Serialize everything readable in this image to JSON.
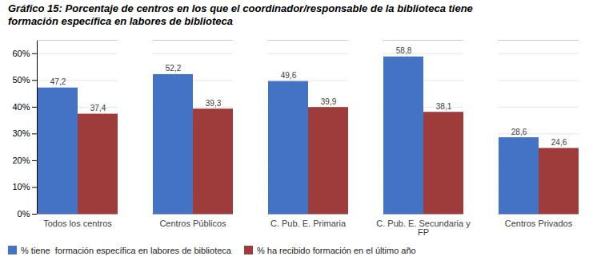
{
  "chart_data": {
    "type": "bar",
    "title": "Gráfico 15: Porcentaje de centros en los que el coordinador/responsable de la biblioteca tiene\nformación específica en labores de biblioteca",
    "categories": [
      "Todos los centros",
      "Centros Públicos",
      "C. Pub. E. Primaria",
      "C. Pub. E. Secundaria y\nFP",
      "Centros Privados"
    ],
    "series": [
      {
        "name": "% tiene  formación específica en labores de biblioteca",
        "color": "#4472C4",
        "values": [
          47.2,
          52.2,
          49.6,
          58.8,
          28.6
        ],
        "value_labels": [
          "47,2",
          "52,2",
          "49,6",
          "58,8",
          "28,6"
        ]
      },
      {
        "name": "% ha recibido formación en el último año",
        "color": "#9E3B3B",
        "values": [
          37.4,
          39.3,
          39.9,
          38.1,
          24.6
        ],
        "value_labels": [
          "37,4",
          "39,3",
          "39,9",
          "38,1",
          "24,6"
        ]
      }
    ],
    "ylim": [
      0,
      65
    ],
    "yticks": [
      {
        "value": 0,
        "label": "0%"
      },
      {
        "value": 10,
        "label": "10%"
      },
      {
        "value": 20,
        "label": "20%"
      },
      {
        "value": 30,
        "label": "30%"
      },
      {
        "value": 40,
        "label": "40%"
      },
      {
        "value": 50,
        "label": "50%"
      },
      {
        "value": 60,
        "label": "60%"
      }
    ],
    "grid": true,
    "data_labels": true,
    "legend": "bottom"
  }
}
